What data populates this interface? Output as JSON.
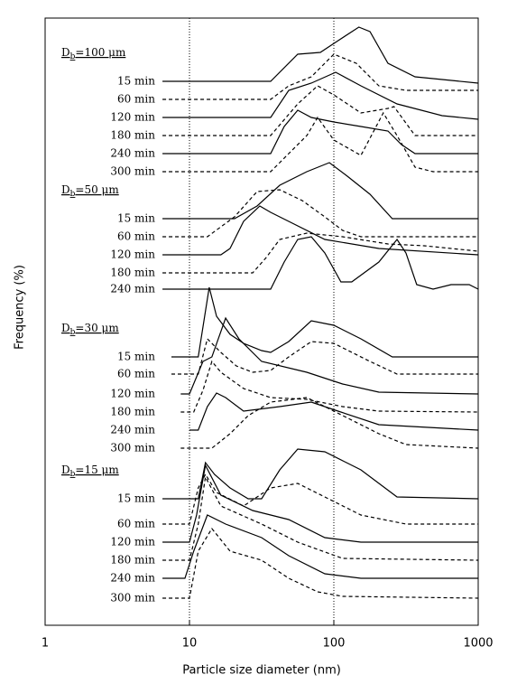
{
  "chart_data": {
    "type": "line",
    "x_label": "Particle size diameter (nm)",
    "y_label": "Frequency (%)",
    "xscale": "log",
    "xlim": [
      1,
      1000
    ],
    "xticks": [
      1,
      10,
      100,
      1000
    ],
    "ylim": [
      0,
      672
    ],
    "vlines": [
      10,
      100
    ],
    "color": "#000000",
    "groups": [
      {
        "title": {
          "symbol": "D",
          "subscript": "b",
          "text": "=100 μm"
        },
        "series": [
          {
            "name": "15 min",
            "style": "solid",
            "x": [
              6.5,
              36.5,
              56.2,
              80.6,
              107,
              149,
              178,
              237,
              365,
              1000
            ],
            "values": [
              602,
              602,
              632,
              634,
              647,
              662,
              657,
              622,
              607,
              600
            ]
          },
          {
            "name": "60 min",
            "style": "dashed",
            "x": [
              6.5,
              36.5,
              48.7,
              69.8,
              100,
              143,
              205,
              316,
              1000
            ],
            "values": [
              582,
              582,
              597,
              607,
              632,
              622,
              597,
              592,
              592
            ]
          },
          {
            "name": "120 min",
            "style": "solid",
            "x": [
              6.5,
              36.5,
              48.7,
              69.8,
              103,
              154,
              274,
              562,
              1000
            ],
            "values": [
              562,
              562,
              592,
              600,
              612,
              597,
              577,
              564,
              560
            ]
          },
          {
            "name": "180 min",
            "style": "dashed",
            "x": [
              6.5,
              36.5,
              56.2,
              77.2,
              100,
              154,
              237,
              261,
              365,
              1000
            ],
            "values": [
              542,
              542,
              577,
              597,
              587,
              567,
              572,
              574,
              542,
              542
            ]
          },
          {
            "name": "240 min",
            "style": "solid",
            "x": [
              6.5,
              36.5,
              45.3,
              56.2,
              69.8,
              100,
              154,
              237,
              294,
              365,
              1000
            ],
            "values": [
              522,
              522,
              552,
              570,
              562,
              557,
              552,
              547,
              532,
              522,
              522
            ]
          },
          {
            "name": "300 min",
            "style": "dashed",
            "x": [
              6.5,
              36.5,
              48.7,
              65,
              77.2,
              100,
              154,
              220,
              274,
              365,
              487,
              1000
            ],
            "values": [
              502,
              502,
              522,
              542,
              562,
              537,
              520,
              567,
              542,
              507,
              502,
              502
            ]
          }
        ]
      },
      {
        "title": {
          "symbol": "D",
          "subscript": "b",
          "text": "=50 μm"
        },
        "series": [
          {
            "name": "15 min",
            "style": "solid",
            "x": [
              6.5,
              20.5,
              29.4,
              42.2,
              65,
              93.1,
              124,
              178,
              254,
              1000
            ],
            "values": [
              450,
              450,
              464,
              487,
              502,
              512,
              497,
              477,
              450,
              450
            ]
          },
          {
            "name": "60 min",
            "style": "dashed",
            "x": [
              6.5,
              13.3,
              20.5,
              29.4,
              42.2,
              60.4,
              86.6,
              115,
              154,
              1000
            ],
            "values": [
              430,
              430,
              452,
              480,
              482,
              470,
              452,
              437,
              430,
              430
            ]
          },
          {
            "name": "120 min",
            "style": "solid",
            "x": [
              6.5,
              16.5,
              19.1,
              23.7,
              30.7,
              36.5,
              48.7,
              86.6,
              205,
              1000
            ],
            "values": [
              410,
              410,
              417,
              447,
              464,
              457,
              447,
              427,
              417,
              410
            ]
          },
          {
            "name": "180 min",
            "style": "dashed",
            "x": [
              6.5,
              27.4,
              34,
              42.2,
              65,
              115,
              237,
              422,
              1000
            ],
            "values": [
              390,
              390,
              407,
              427,
              434,
              430,
              422,
              420,
              414
            ]
          },
          {
            "name": "240 min",
            "style": "solid",
            "x": [
              6.5,
              36.5,
              45.3,
              56.2,
              69.8,
              86.6,
              112,
              133,
              205,
              274,
              316,
              375,
              487,
              649,
              866,
              1000
            ],
            "values": [
              372,
              372,
              402,
              427,
              430,
              412,
              380,
              380,
              402,
              427,
              412,
              377,
              372,
              377,
              377,
              372
            ]
          }
        ]
      },
      {
        "title": {
          "symbol": "D",
          "subscript": "b",
          "text": "=30 μm"
        },
        "series": [
          {
            "name": "15 min",
            "style": "solid",
            "x": [
              7.5,
              11.5,
              13.7,
              15.4,
              19.1,
              23.7,
              31.6,
              36.5,
              48.7,
              69.8,
              100,
              154,
              254,
              1000
            ],
            "values": [
              297,
              297,
              374,
              342,
              322,
              312,
              304,
              302,
              314,
              337,
              332,
              317,
              297,
              297
            ]
          },
          {
            "name": "60 min",
            "style": "dashed",
            "x": [
              7.5,
              11.5,
              13.3,
              16.5,
              21.1,
              27.4,
              36.5,
              48.7,
              69.8,
              100,
              178,
              274,
              1000
            ],
            "values": [
              278,
              278,
              317,
              302,
              287,
              280,
              282,
              297,
              314,
              312,
              292,
              278,
              278
            ]
          },
          {
            "name": "120 min",
            "style": "solid",
            "x": [
              8.7,
              10,
              12.4,
              14.3,
              17.8,
              22,
              31.6,
              65,
              115,
              205,
              1000
            ],
            "values": [
              256,
              256,
              292,
              297,
              340,
              317,
              292,
              280,
              267,
              258,
              256
            ]
          },
          {
            "name": "180 min",
            "style": "dashed",
            "x": [
              8.7,
              10.7,
              12.4,
              14.3,
              16.5,
              23.7,
              36.5,
              65,
              115,
              205,
              1000
            ],
            "values": [
              236,
              236,
              260,
              292,
              280,
              262,
              252,
              250,
              242,
              237,
              236
            ]
          },
          {
            "name": "240 min",
            "style": "solid",
            "x": [
              10,
              11.5,
              13.3,
              15.4,
              17.8,
              23.7,
              42.2,
              69.8,
              107,
              205,
              1000
            ],
            "values": [
              216,
              216,
              242,
              257,
              252,
              237,
              242,
              247,
              237,
              222,
              216
            ]
          },
          {
            "name": "300 min",
            "style": "dashed",
            "x": [
              8.7,
              14.3,
              19.1,
              25.5,
              36.5,
              65,
              100,
              205,
              316,
              1000
            ],
            "values": [
              196,
              196,
              212,
              232,
              247,
              252,
              237,
              212,
              200,
              196
            ]
          }
        ]
      },
      {
        "title": {
          "symbol": "D",
          "subscript": "b",
          "text": "=15 μm"
        },
        "series": [
          {
            "name": "15 min",
            "style": "solid",
            "x": [
              6.5,
              11.5,
              12.9,
              14.9,
              19.1,
              25.5,
              31.6,
              42.2,
              56.2,
              86.6,
              154,
              274,
              1000
            ],
            "values": [
              140,
              140,
              180,
              167,
              152,
              140,
              140,
              172,
              195,
              192,
              172,
              142,
              140
            ]
          },
          {
            "name": "60 min",
            "style": "dashed",
            "x": [
              6.5,
              10,
              11.5,
              12.9,
              15.4,
              23.7,
              36.5,
              56.2,
              86.6,
              154,
              316,
              1000
            ],
            "values": [
              112,
              112,
              152,
              167,
              147,
              132,
              152,
              157,
              142,
              122,
              112,
              112
            ]
          },
          {
            "name": "120 min",
            "style": "solid",
            "x": [
              6.5,
              10,
              11.2,
              12.9,
              16.5,
              27.4,
              48.7,
              86.6,
              154,
              1000
            ],
            "values": [
              92,
              92,
              122,
              177,
              144,
              127,
              117,
              97,
              92,
              92
            ]
          },
          {
            "name": "180 min",
            "style": "dashed",
            "x": [
              6.5,
              10,
              11.5,
              12.9,
              16.5,
              31.6,
              56.2,
              115,
              1000
            ],
            "values": [
              72,
              72,
              112,
              164,
              132,
              112,
              92,
              74,
              72
            ]
          },
          {
            "name": "240 min",
            "style": "solid",
            "x": [
              6.5,
              9.3,
              10.7,
              13.3,
              17.8,
              31.6,
              48.7,
              86.6,
              154,
              1000
            ],
            "values": [
              52,
              52,
              82,
              122,
              112,
              97,
              77,
              57,
              52,
              52
            ]
          },
          {
            "name": "300 min",
            "style": "dashed",
            "x": [
              6.5,
              10,
              11.5,
              14.3,
              19.1,
              31.6,
              48.7,
              77.2,
              115,
              1000
            ],
            "values": [
              30,
              30,
              82,
              107,
              82,
              72,
              52,
              37,
              32,
              30
            ]
          }
        ]
      }
    ]
  }
}
